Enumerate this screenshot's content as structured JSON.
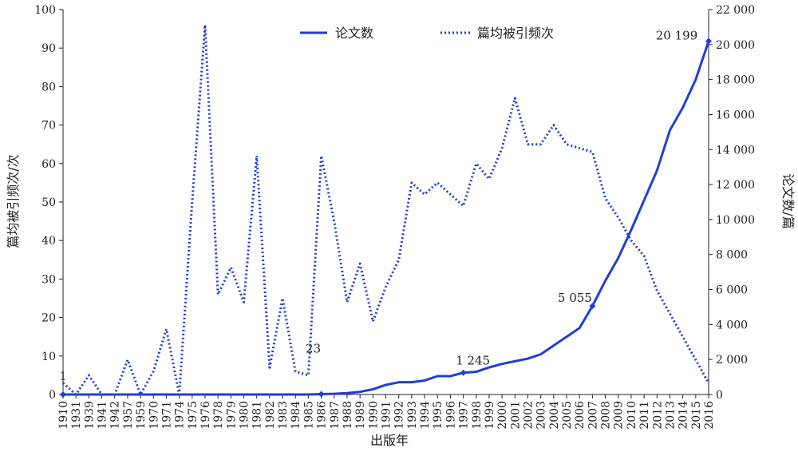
{
  "chart_data": {
    "type": "line",
    "xlabel": "出版年",
    "ylabel_left": "篇均被引频次/次",
    "ylabel_right": "论文数/篇",
    "y_left_range": [
      0,
      100
    ],
    "y_left_ticks": [
      0,
      10,
      20,
      30,
      40,
      50,
      60,
      70,
      80,
      90,
      100
    ],
    "y_right_range": [
      0,
      22000
    ],
    "y_right_ticks": [
      "0",
      "2 000",
      "4 000",
      "6 000",
      "8 000",
      "10 000",
      "12 000",
      "14 000",
      "16 000",
      "18 000",
      "20 000",
      "22 000"
    ],
    "categories": [
      "1910",
      "1931",
      "1939",
      "1941",
      "1942",
      "1957",
      "1959",
      "1970",
      "1971",
      "1974",
      "1975",
      "1976",
      "1978",
      "1979",
      "1980",
      "1981",
      "1982",
      "1983",
      "1984",
      "1985",
      "1986",
      "1987",
      "1988",
      "1989",
      "1990",
      "1991",
      "1992",
      "1993",
      "1994",
      "1995",
      "1996",
      "1997",
      "1998",
      "1999",
      "2000",
      "2001",
      "2002",
      "2003",
      "2004",
      "2005",
      "2006",
      "2007",
      "2008",
      "2009",
      "2010",
      "2011",
      "2012",
      "2013",
      "2014",
      "2015",
      "2016"
    ],
    "legend_position": "top",
    "grid": false,
    "series": [
      {
        "name": "论文数",
        "axis": "right",
        "style": "solid",
        "color": "#1f3fd8",
        "values": [
          1,
          1,
          1,
          1,
          1,
          1,
          1,
          1,
          1,
          1,
          1,
          1,
          1,
          1,
          1,
          1,
          1,
          1,
          1,
          1,
          23,
          40,
          80,
          150,
          300,
          550,
          700,
          700,
          800,
          1050,
          1050,
          1245,
          1300,
          1550,
          1750,
          1900,
          2050,
          2300,
          2800,
          3300,
          3800,
          5055,
          6500,
          7800,
          9400,
          11100,
          12800,
          15100,
          16400,
          18000,
          20199
        ]
      },
      {
        "name": "篇均被引频次",
        "axis": "left",
        "style": "dotted",
        "color": "#1f3fd8",
        "values": [
          3,
          0,
          5,
          0,
          0,
          9,
          0,
          6,
          17,
          0,
          50,
          96,
          26,
          33,
          24,
          62,
          7,
          25,
          6,
          5,
          62,
          45,
          24,
          34,
          19,
          28,
          35,
          55,
          52,
          55,
          52,
          49,
          60,
          56,
          64,
          77,
          65,
          65,
          70,
          65,
          64,
          63,
          51,
          46,
          40,
          36,
          27,
          21,
          15,
          9,
          3
        ]
      }
    ],
    "annotations": [
      {
        "text": "1",
        "series": 0,
        "category": "1910"
      },
      {
        "text": "23",
        "series": 0,
        "category": "1986"
      },
      {
        "text": "1 245",
        "series": 0,
        "category": "1997"
      },
      {
        "text": "5 055",
        "series": 0,
        "category": "2007"
      },
      {
        "text": "20 199",
        "series": 0,
        "category": "2016"
      }
    ]
  }
}
